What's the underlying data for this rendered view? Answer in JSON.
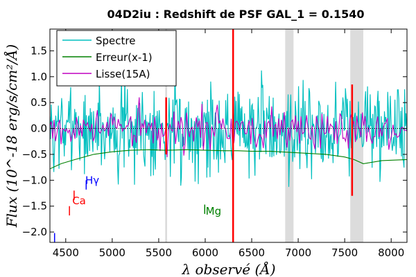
{
  "chart_data": {
    "type": "line",
    "title": "04D2iu : Redshift de PSF GAL_1 = 0.1540",
    "xlabel": "λ observé (Å)",
    "ylabel": "Flux (10^-18 erg/s/cm²/Å)",
    "xlim": [
      4330,
      8170
    ],
    "ylim": [
      -2.2,
      1.92
    ],
    "x_ticks": [
      4500,
      5000,
      5500,
      6000,
      6500,
      7000,
      7500,
      8000
    ],
    "y_ticks": [
      -2.0,
      -1.5,
      -1.0,
      -0.5,
      0.0,
      0.5,
      1.0,
      1.5
    ],
    "x_tick_labels": [
      "4500",
      "5000",
      "5500",
      "6000",
      "6500",
      "7000",
      "7500",
      "8000"
    ],
    "y_tick_labels": [
      "−2.0",
      "−1.5",
      "−1.0",
      "−0.5",
      "0.0",
      "0.5",
      "1.0",
      "1.5"
    ],
    "legend": {
      "position": "top-left",
      "entries": [
        {
          "label": "Spectre",
          "color": "#00bfbf"
        },
        {
          "label": "Erreur(x-1)",
          "color": "#008000"
        },
        {
          "label": "Lisse(15A)",
          "color": "#bf00bf"
        }
      ]
    },
    "shaded_bands": [
      {
        "x0": 5570,
        "x1": 5590
      },
      {
        "x0": 6860,
        "x1": 6950
      },
      {
        "x0": 7560,
        "x1": 7700
      }
    ],
    "zero_line": {
      "y": 0.0,
      "style": "dotted"
    },
    "vertical_lines": [
      {
        "x": 5580,
        "y0": -0.5,
        "y1": 0.6,
        "color": "#ff0000"
      },
      {
        "x": 6300,
        "y0": -2.2,
        "y1": 1.92,
        "color": "#ff0000"
      },
      {
        "x": 7580,
        "y0": -1.3,
        "y1": 0.85,
        "color": "#ff0000"
      }
    ],
    "line_markers": [
      {
        "label": "Ca",
        "x": 4540,
        "tick_y0": -1.68,
        "tick_y1": -1.5,
        "text_x": 4570,
        "text_y": -1.4,
        "color": "#ff0000"
      },
      {
        "label": "",
        "x": 4590,
        "tick_y0": -1.38,
        "tick_y1": -1.2,
        "text_x": 0,
        "text_y": 0,
        "color": "#ff0000"
      },
      {
        "label": "Hγ",
        "x": 4720,
        "tick_y0": -1.18,
        "tick_y1": -1.0,
        "text_x": 4710,
        "text_y": -1.0,
        "color": "#0000ff"
      },
      {
        "label": "Mg",
        "x": 5995,
        "tick_y0": -1.65,
        "tick_y1": -1.47,
        "text_x": 6005,
        "text_y": -1.6,
        "color": "#008000"
      },
      {
        "label": "",
        "x": 4380,
        "tick_y0": -2.2,
        "tick_y1": -2.02,
        "text_x": 0,
        "text_y": 0,
        "color": "#0000ff"
      }
    ],
    "series": [
      {
        "name": "Spectre",
        "color": "#00bfbf",
        "generated": {
          "x_start": 4330,
          "x_end": 8170,
          "step": 7,
          "seed": 7,
          "noise_scale": 0.55,
          "base": 0.0
        }
      },
      {
        "name": "Erreur(x-1)",
        "color": "#008000",
        "x": [
          4330,
          4450,
          4600,
          4800,
          5000,
          5200,
          5400,
          5560,
          5600,
          5800,
          6000,
          6200,
          6350,
          6500,
          6700,
          6900,
          7100,
          7300,
          7500,
          7600,
          7700,
          7900,
          8170
        ],
        "y": [
          -0.78,
          -0.68,
          -0.6,
          -0.5,
          -0.45,
          -0.42,
          -0.41,
          -0.42,
          -0.42,
          -0.41,
          -0.42,
          -0.43,
          -0.43,
          -0.44,
          -0.44,
          -0.46,
          -0.48,
          -0.5,
          -0.55,
          -0.6,
          -0.68,
          -0.62,
          -0.6
        ]
      },
      {
        "name": "Lisse(15A)",
        "color": "#bf00bf",
        "generated": {
          "x_start": 4330,
          "x_end": 8170,
          "step": 15,
          "seed": 3,
          "noise_scale": 0.22,
          "base": 0.0
        }
      }
    ]
  }
}
